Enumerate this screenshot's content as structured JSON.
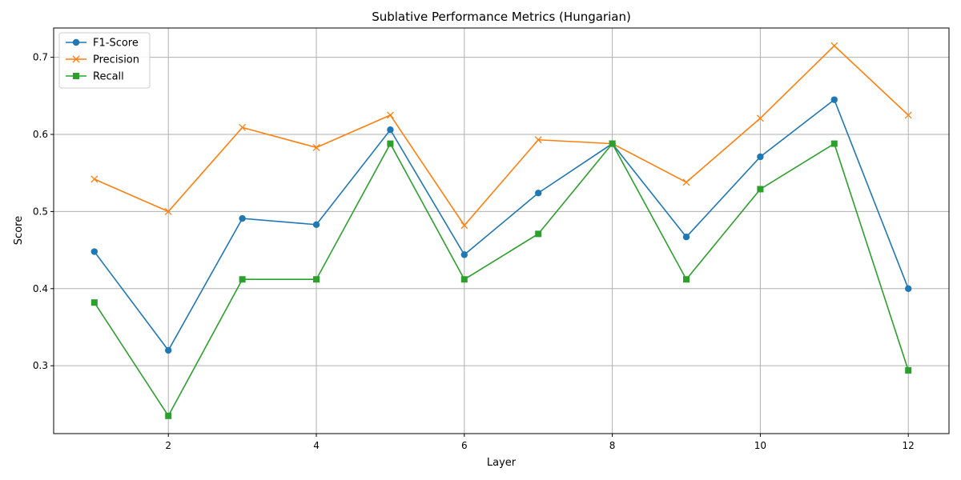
{
  "chart_data": {
    "type": "line",
    "title": "Sublative Performance Metrics (Hungarian)",
    "xlabel": "Layer",
    "ylabel": "Score",
    "x": [
      1,
      2,
      3,
      4,
      5,
      6,
      7,
      8,
      9,
      10,
      11,
      12
    ],
    "xlim": [
      0.45,
      12.55
    ],
    "ylim": [
      0.212,
      0.738
    ],
    "xticks": [
      2,
      4,
      6,
      8,
      10,
      12
    ],
    "yticks": [
      0.3,
      0.4,
      0.5,
      0.6,
      0.7
    ],
    "ytick_labels": [
      "0.3",
      "0.4",
      "0.5",
      "0.6",
      "0.7"
    ],
    "grid": true,
    "legend_position": "top-left",
    "series": [
      {
        "name": "F1-Score",
        "color": "#1f77b4",
        "marker": "circle",
        "values": [
          0.448,
          0.32,
          0.491,
          0.483,
          0.606,
          0.444,
          0.524,
          0.588,
          0.467,
          0.571,
          0.645,
          0.4
        ]
      },
      {
        "name": "Precision",
        "color": "#ff7f0e",
        "marker": "x",
        "values": [
          0.542,
          0.5,
          0.609,
          0.583,
          0.625,
          0.482,
          0.593,
          0.588,
          0.538,
          0.621,
          0.715,
          0.625
        ]
      },
      {
        "name": "Recall",
        "color": "#2ca02c",
        "marker": "square",
        "values": [
          0.382,
          0.235,
          0.412,
          0.412,
          0.588,
          0.412,
          0.471,
          0.588,
          0.412,
          0.529,
          0.588,
          0.294
        ]
      }
    ]
  }
}
